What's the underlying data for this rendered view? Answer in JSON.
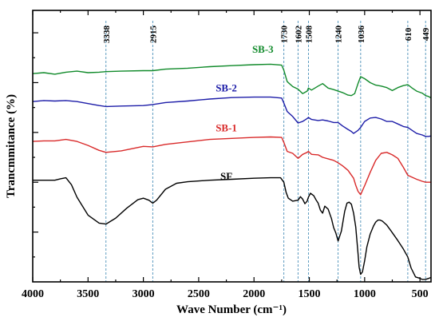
{
  "chart_data": {
    "type": "line",
    "xlabel": "Wave Number (cm⁻¹)",
    "ylabel": "Trancmmitance (%)",
    "xlim": [
      4000,
      400
    ],
    "ylim": [
      0,
      5.45
    ],
    "x_ticks": [
      4000,
      3500,
      3000,
      2500,
      2000,
      1500,
      1000,
      500
    ],
    "x_tick_labels": [
      "4000",
      "3500",
      "3000",
      "2500",
      "2000",
      "1500",
      "1000",
      "500"
    ],
    "y_tick_labels_shown": false,
    "grid": false,
    "legend": "inline labels",
    "annotations": [
      {
        "label": "3338",
        "x": 3338
      },
      {
        "label": "2915",
        "x": 2915
      },
      {
        "label": "1730",
        "x": 1730
      },
      {
        "label": "1602",
        "x": 1602
      },
      {
        "label": "1508",
        "x": 1508
      },
      {
        "label": "1240",
        "x": 1240
      },
      {
        "label": "1036",
        "x": 1036
      },
      {
        "label": "610",
        "x": 610
      },
      {
        "label": "449",
        "x": 449
      }
    ],
    "series": [
      {
        "name": "SB-3",
        "color": "#108a2a",
        "label_pos": [
          1920,
          4.6
        ],
        "x": [
          4000,
          3900,
          3800,
          3700,
          3600,
          3500,
          3400,
          3338,
          3200,
          3000,
          2915,
          2800,
          2600,
          2400,
          2200,
          2000,
          1850,
          1750,
          1730,
          1700,
          1650,
          1602,
          1560,
          1520,
          1508,
          1480,
          1420,
          1380,
          1330,
          1280,
          1240,
          1200,
          1150,
          1120,
          1090,
          1060,
          1036,
          1000,
          950,
          900,
          850,
          800,
          750,
          700,
          650,
          610,
          570,
          530,
          480,
          449,
          420,
          400
        ],
        "y": [
          4.18,
          4.2,
          4.17,
          4.21,
          4.23,
          4.2,
          4.21,
          4.22,
          4.23,
          4.24,
          4.24,
          4.27,
          4.29,
          4.32,
          4.34,
          4.36,
          4.37,
          4.35,
          4.25,
          4.02,
          3.92,
          3.87,
          3.78,
          3.83,
          3.89,
          3.85,
          3.93,
          3.98,
          3.89,
          3.86,
          3.83,
          3.8,
          3.75,
          3.74,
          3.78,
          3.98,
          4.12,
          4.08,
          4.0,
          3.95,
          3.93,
          3.9,
          3.84,
          3.9,
          3.94,
          3.96,
          3.89,
          3.83,
          3.79,
          3.74,
          3.72,
          3.69
        ]
      },
      {
        "name": "SB-2",
        "color": "#1c1ca8",
        "label_pos": [
          2250,
          3.82
        ],
        "x": [
          4000,
          3900,
          3800,
          3700,
          3600,
          3500,
          3400,
          3338,
          3200,
          3000,
          2915,
          2800,
          2600,
          2400,
          2200,
          2000,
          1850,
          1750,
          1730,
          1700,
          1650,
          1602,
          1560,
          1520,
          1508,
          1480,
          1420,
          1380,
          1330,
          1280,
          1240,
          1200,
          1150,
          1120,
          1100,
          1060,
          1036,
          1000,
          950,
          900,
          850,
          800,
          750,
          700,
          650,
          610,
          570,
          530,
          480,
          449,
          420,
          400
        ],
        "y": [
          3.62,
          3.64,
          3.63,
          3.64,
          3.62,
          3.58,
          3.54,
          3.52,
          3.53,
          3.54,
          3.56,
          3.6,
          3.63,
          3.67,
          3.7,
          3.71,
          3.71,
          3.69,
          3.59,
          3.42,
          3.32,
          3.19,
          3.22,
          3.28,
          3.3,
          3.26,
          3.24,
          3.25,
          3.23,
          3.2,
          3.2,
          3.13,
          3.06,
          3.02,
          2.98,
          3.04,
          3.1,
          3.22,
          3.29,
          3.3,
          3.27,
          3.22,
          3.22,
          3.17,
          3.12,
          3.1,
          3.04,
          2.98,
          2.95,
          2.92,
          2.92,
          2.93
        ]
      },
      {
        "name": "SB-1",
        "color": "#d92a2a",
        "label_pos": [
          2250,
          3.02
        ],
        "x": [
          4000,
          3900,
          3800,
          3700,
          3600,
          3500,
          3400,
          3338,
          3200,
          3000,
          2915,
          2800,
          2600,
          2400,
          2200,
          2000,
          1850,
          1750,
          1730,
          1700,
          1650,
          1602,
          1560,
          1520,
          1508,
          1480,
          1420,
          1380,
          1330,
          1280,
          1240,
          1200,
          1150,
          1100,
          1080,
          1060,
          1036,
          1000,
          950,
          900,
          850,
          800,
          750,
          700,
          650,
          610,
          570,
          530,
          480,
          449,
          420,
          400
        ],
        "y": [
          2.82,
          2.83,
          2.83,
          2.86,
          2.82,
          2.74,
          2.64,
          2.6,
          2.63,
          2.72,
          2.71,
          2.76,
          2.81,
          2.86,
          2.88,
          2.9,
          2.91,
          2.9,
          2.8,
          2.62,
          2.58,
          2.48,
          2.56,
          2.6,
          2.62,
          2.56,
          2.55,
          2.5,
          2.47,
          2.44,
          2.39,
          2.33,
          2.24,
          2.08,
          1.94,
          1.82,
          1.75,
          1.93,
          2.2,
          2.44,
          2.58,
          2.6,
          2.55,
          2.48,
          2.3,
          2.14,
          2.1,
          2.06,
          2.02,
          2.0,
          2.0,
          2.0
        ]
      },
      {
        "name": "SF",
        "color": "#000000",
        "label_pos": [
          2250,
          2.05
        ],
        "x": [
          4000,
          3900,
          3800,
          3750,
          3700,
          3650,
          3600,
          3500,
          3400,
          3338,
          3250,
          3150,
          3050,
          3000,
          2950,
          2915,
          2880,
          2800,
          2700,
          2600,
          2400,
          2200,
          2000,
          1850,
          1760,
          1730,
          1710,
          1690,
          1650,
          1602,
          1580,
          1560,
          1540,
          1520,
          1508,
          1490,
          1460,
          1440,
          1420,
          1400,
          1380,
          1360,
          1330,
          1300,
          1280,
          1260,
          1240,
          1210,
          1180,
          1160,
          1140,
          1120,
          1100,
          1080,
          1060,
          1050,
          1036,
          1020,
          1000,
          980,
          950,
          920,
          900,
          880,
          860,
          840,
          800,
          760,
          700,
          650,
          610,
          580,
          540,
          500,
          480,
          449,
          420,
          400
        ],
        "y": [
          2.04,
          2.04,
          2.04,
          2.07,
          2.09,
          1.95,
          1.7,
          1.34,
          1.18,
          1.16,
          1.28,
          1.48,
          1.65,
          1.68,
          1.64,
          1.58,
          1.64,
          1.86,
          1.98,
          2.01,
          2.04,
          2.06,
          2.08,
          2.09,
          2.09,
          2.0,
          1.8,
          1.68,
          1.62,
          1.64,
          1.71,
          1.66,
          1.57,
          1.62,
          1.7,
          1.78,
          1.73,
          1.65,
          1.58,
          1.44,
          1.38,
          1.52,
          1.46,
          1.27,
          1.09,
          0.98,
          0.82,
          1.02,
          1.42,
          1.58,
          1.6,
          1.56,
          1.38,
          1.1,
          0.58,
          0.3,
          0.15,
          0.2,
          0.42,
          0.7,
          0.96,
          1.12,
          1.2,
          1.24,
          1.24,
          1.22,
          1.14,
          1.02,
          0.83,
          0.66,
          0.5,
          0.28,
          0.1,
          0.07,
          0.05,
          0.05,
          0.07,
          0.09
        ]
      }
    ]
  }
}
